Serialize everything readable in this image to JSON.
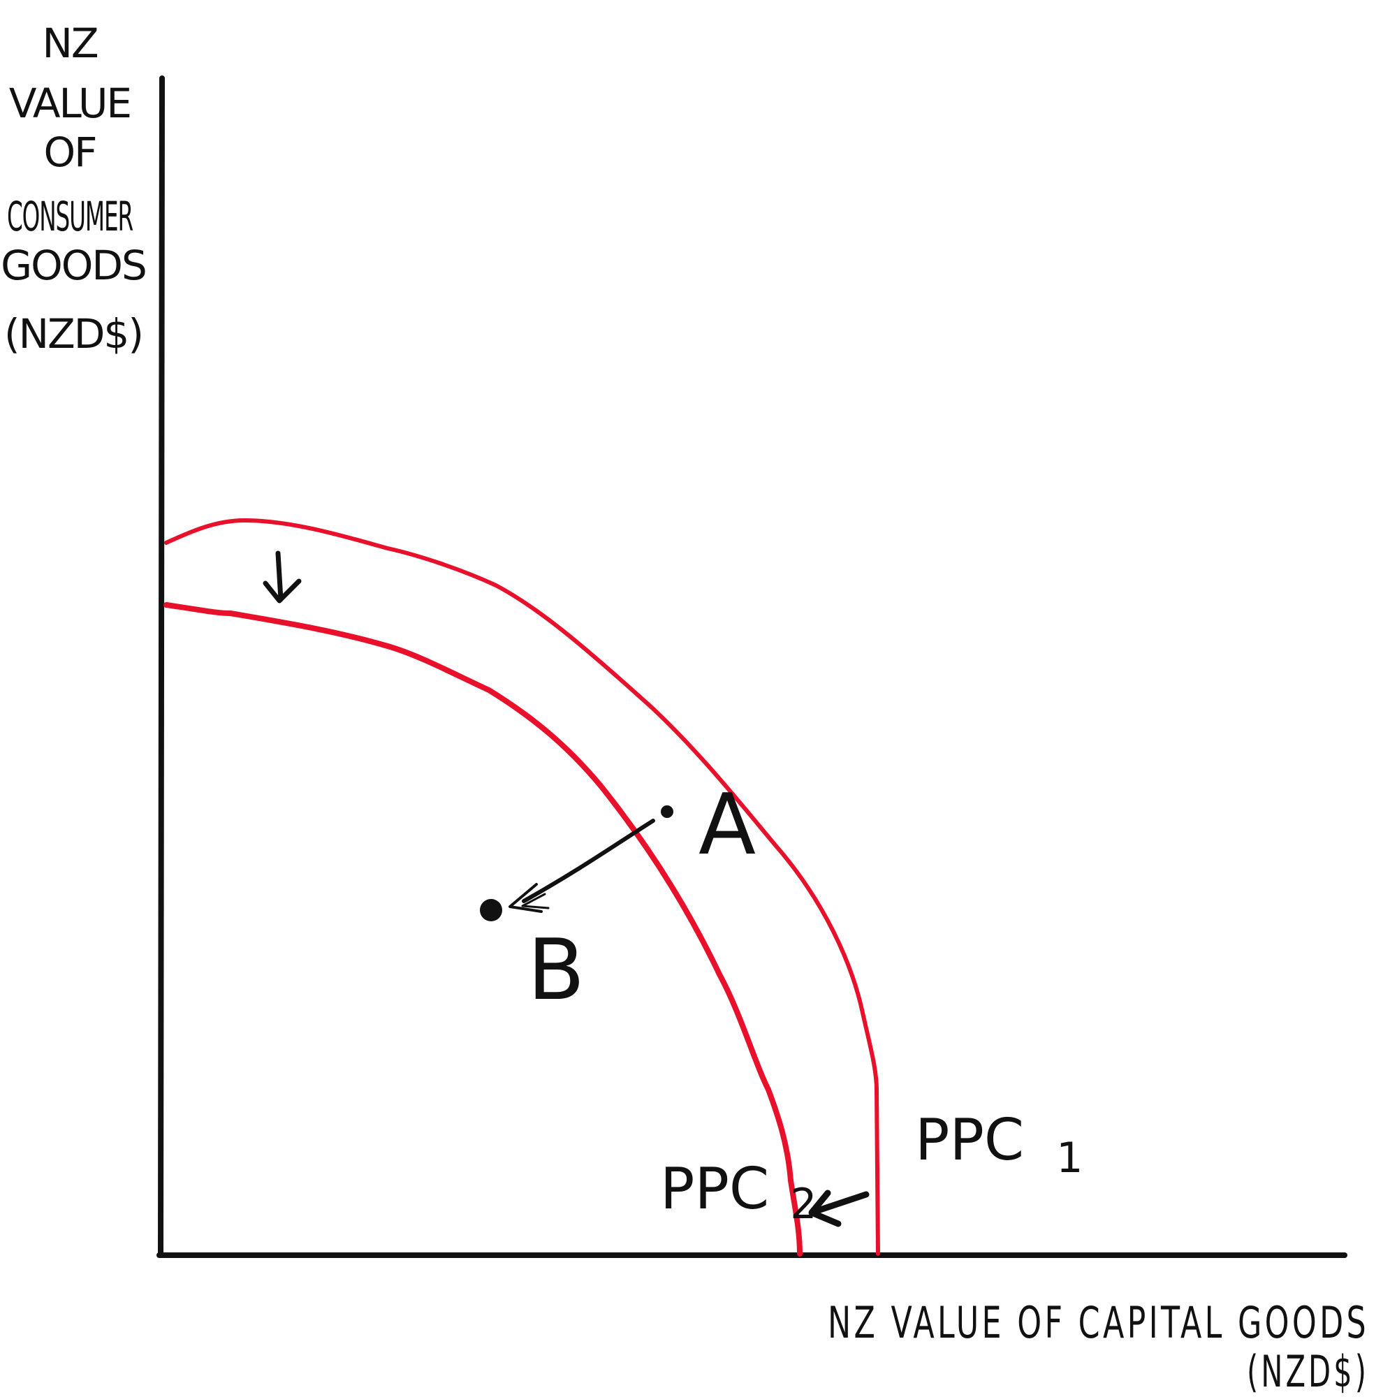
{
  "y_axis_label": [
    "NZ",
    "VALUE",
    "OF",
    "CONSUMER",
    "GOODS",
    "(NZD$)"
  ],
  "x_axis_label": {
    "line1": "NZ VALUE OF CAPITAL GOODS",
    "line2": "(NZD$)"
  },
  "curves": [
    {
      "label": "PPC",
      "subscript": "1",
      "color": "#e8102a"
    },
    {
      "label": "PPC",
      "subscript": "2",
      "color": "#e8102a"
    }
  ],
  "points": [
    {
      "label": "A"
    },
    {
      "label": "B"
    }
  ],
  "colors": {
    "axis": "#111111",
    "curve": "#e8102a",
    "ink": "#111111"
  }
}
